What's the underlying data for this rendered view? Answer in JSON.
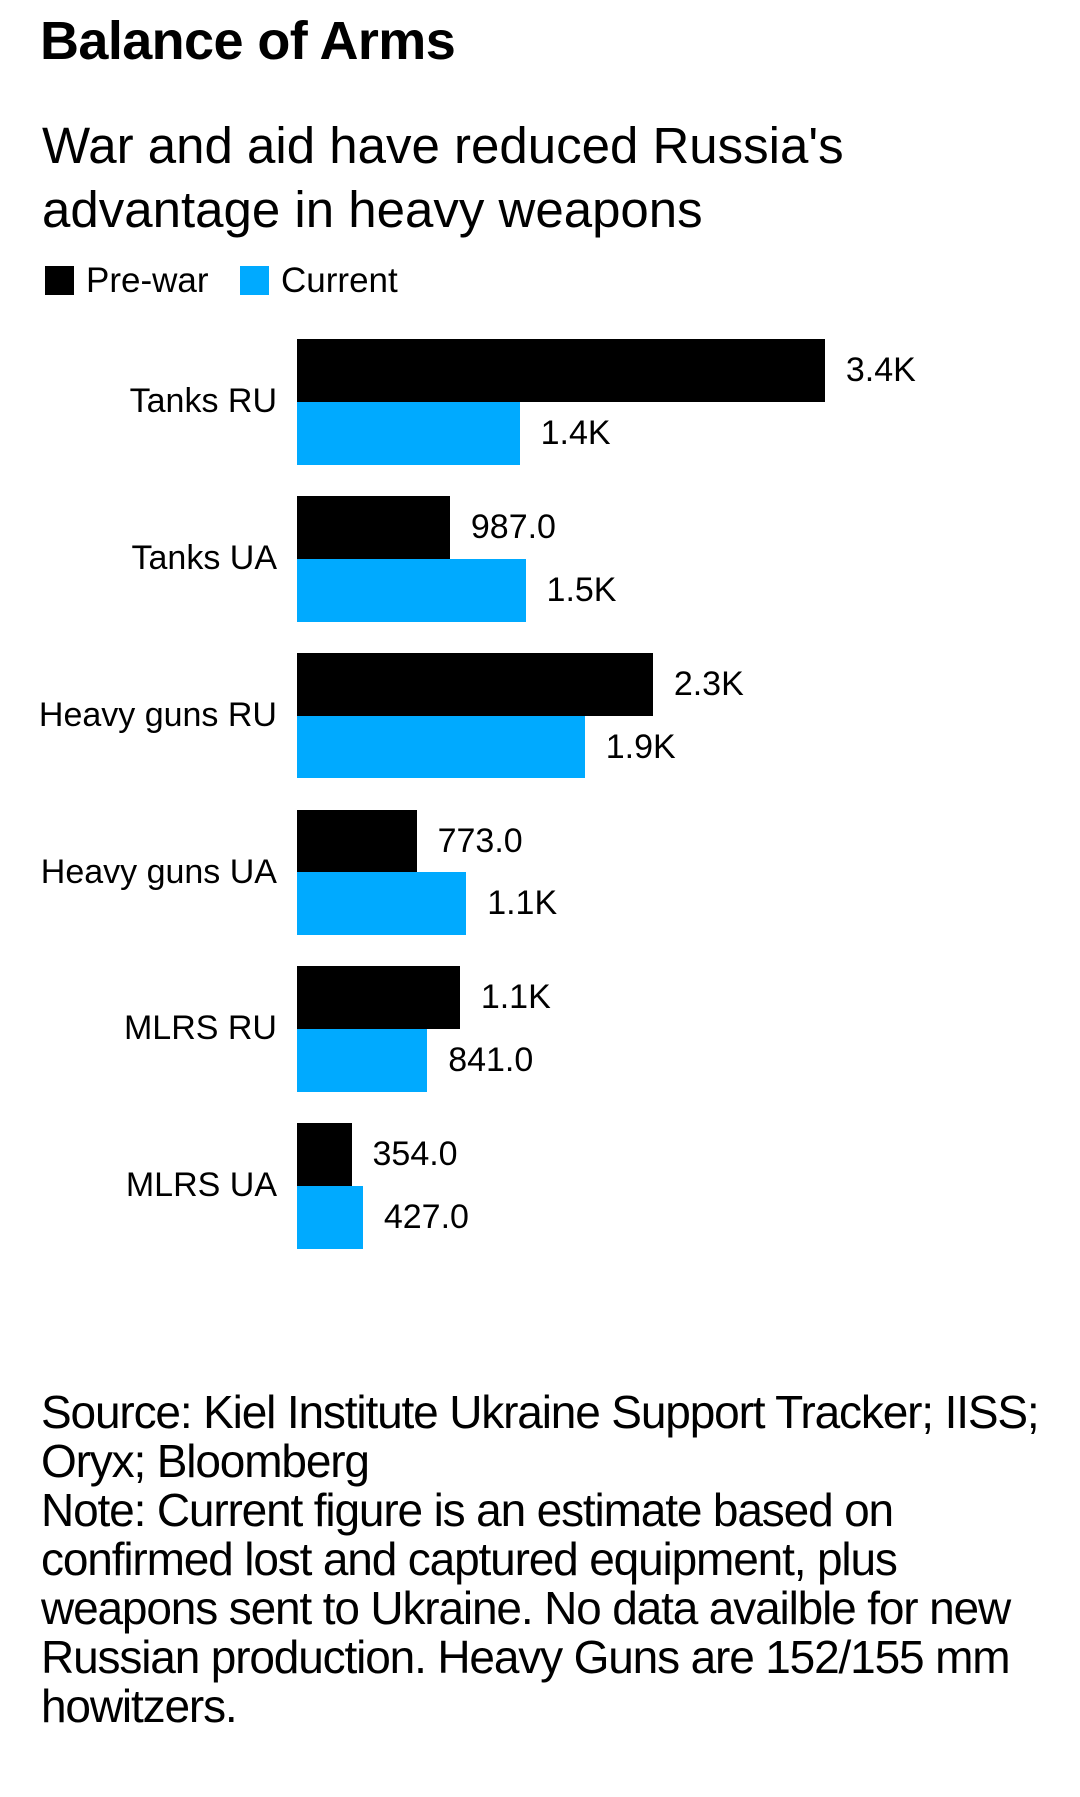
{
  "header": {
    "title": "Balance of Arms",
    "subtitle": "War and aid have reduced Russia's\nadvantage in heavy weapons"
  },
  "legend": [
    {
      "label": "Pre-war",
      "color": "#000000"
    },
    {
      "label": "Current",
      "color": "#00AAFF"
    }
  ],
  "chart_data": {
    "type": "bar",
    "orientation": "horizontal",
    "title": "Balance of Arms",
    "subtitle": "War and aid have reduced Russia's advantage in heavy weapons",
    "categories": [
      "Tanks RU",
      "Tanks UA",
      "Heavy guns RU",
      "Heavy guns UA",
      "MLRS RU",
      "MLRS UA"
    ],
    "series": [
      {
        "name": "Pre-war",
        "color": "#000000",
        "values": [
          3400,
          987,
          2293,
          773,
          1051,
          354
        ],
        "value_labels": [
          "3.4K",
          "987.0",
          "2.3K",
          "773.0",
          "1.1K",
          "354.0"
        ]
      },
      {
        "name": "Current",
        "color": "#00AAFF",
        "values": [
          1436,
          1474,
          1855,
          1092,
          841,
          427
        ],
        "value_labels": [
          "1.4K",
          "1.5K",
          "1.9K",
          "1.1K",
          "841.0",
          "427.0"
        ]
      }
    ],
    "grid": false,
    "legend_position": "top-left"
  },
  "footer": {
    "source": "Source: Kiel Institute Ukraine Support Tracker; IISS;\nOryx; Bloomberg",
    "note": "Note: Current figure is an estimate based on\nconfirmed lost and captured equipment, plus\nweapons sent to Ukraine. No data availble for new\nRussian production. Heavy Guns are 152/155 mm\nhowitzers."
  }
}
